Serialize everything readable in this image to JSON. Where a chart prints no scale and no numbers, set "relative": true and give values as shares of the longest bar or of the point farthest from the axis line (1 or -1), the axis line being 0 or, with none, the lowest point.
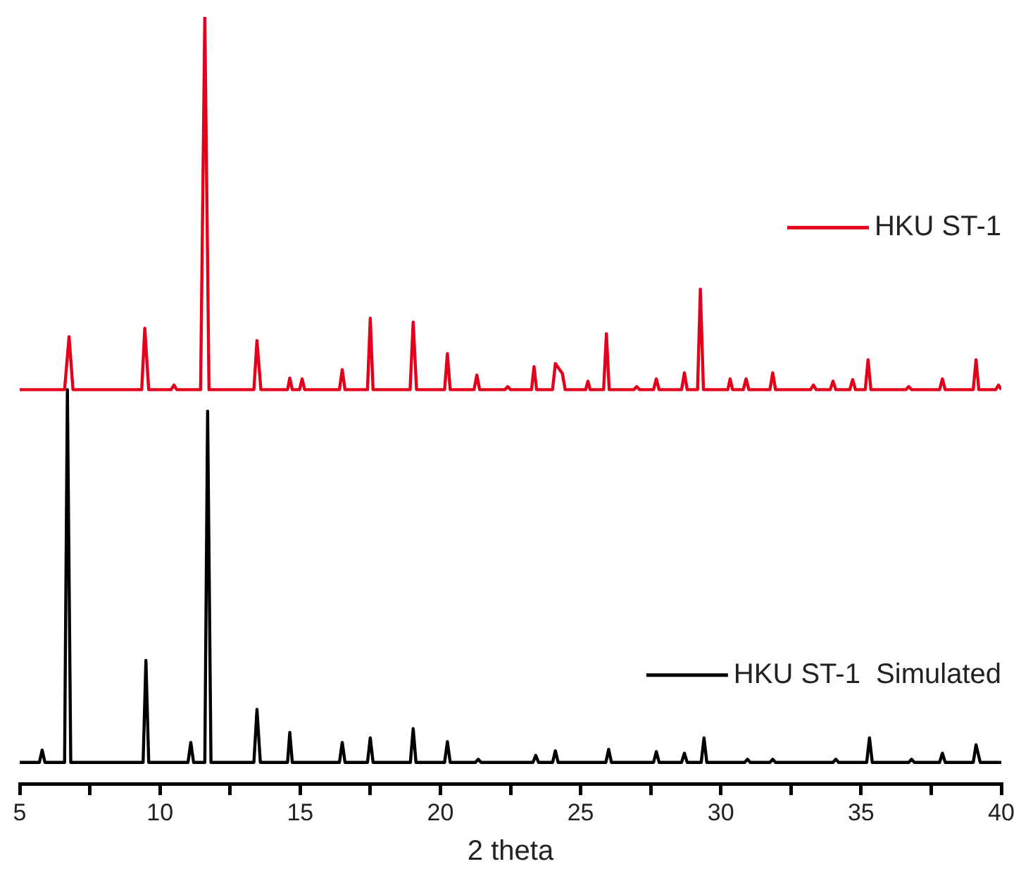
{
  "chart_data": {
    "type": "line",
    "relative": true,
    "xlabel": "2 theta",
    "xlim": [
      5,
      40
    ],
    "xticks": [
      5,
      {
        "value": 7.5,
        "label": null
      },
      10,
      {
        "value": 12.5,
        "label": null
      },
      15,
      {
        "value": 17.5,
        "label": null
      },
      20,
      {
        "value": 22.5,
        "label": null
      },
      25,
      {
        "value": 27.5,
        "label": null
      },
      30,
      {
        "value": 32.5,
        "label": null
      },
      35,
      {
        "value": 37.5,
        "label": null
      },
      40
    ],
    "legend": "right",
    "marker": "none",
    "line_style": "solid",
    "grid": false,
    "series": [
      {
        "name": "HKU ST-1",
        "color": "#e3001b",
        "x": [
          5.0,
          6.6,
          6.76,
          6.9,
          9.35,
          9.46,
          9.6,
          10.4,
          10.5,
          10.6,
          11.45,
          11.6,
          11.75,
          13.35,
          13.46,
          13.6,
          14.55,
          14.63,
          14.72,
          14.98,
          15.07,
          15.16,
          16.4,
          16.5,
          16.6,
          17.4,
          17.5,
          17.6,
          18.92,
          19.03,
          19.15,
          20.15,
          20.25,
          20.35,
          21.2,
          21.3,
          21.4,
          22.3,
          22.4,
          22.5,
          23.25,
          23.34,
          23.43,
          24.0,
          24.1,
          24.35,
          24.45,
          25.18,
          25.26,
          25.34,
          25.82,
          25.92,
          26.02,
          26.9,
          27.0,
          27.1,
          27.6,
          27.7,
          27.8,
          28.6,
          28.7,
          28.8,
          29.17,
          29.27,
          29.38,
          30.25,
          30.33,
          30.42,
          30.8,
          30.9,
          31.0,
          31.75,
          31.85,
          31.95,
          33.2,
          33.3,
          33.4,
          33.9,
          34.0,
          34.1,
          34.6,
          34.7,
          34.8,
          35.15,
          35.25,
          35.35,
          36.6,
          36.7,
          36.8,
          37.8,
          37.9,
          38.0,
          39.0,
          39.1,
          39.2,
          39.8,
          39.9,
          40.0
        ],
        "values": [
          0.514,
          0.514,
          0.583,
          0.514,
          0.514,
          0.594,
          0.514,
          0.514,
          0.52,
          0.514,
          0.514,
          1.0,
          0.514,
          0.514,
          0.578,
          0.514,
          0.514,
          0.529,
          0.514,
          0.514,
          0.528,
          0.514,
          0.514,
          0.54,
          0.514,
          0.514,
          0.607,
          0.514,
          0.514,
          0.602,
          0.514,
          0.514,
          0.561,
          0.514,
          0.514,
          0.533,
          0.514,
          0.514,
          0.518,
          0.514,
          0.514,
          0.544,
          0.514,
          0.514,
          0.548,
          0.535,
          0.514,
          0.514,
          0.525,
          0.514,
          0.514,
          0.587,
          0.514,
          0.514,
          0.518,
          0.514,
          0.514,
          0.528,
          0.514,
          0.514,
          0.536,
          0.514,
          0.514,
          0.645,
          0.514,
          0.514,
          0.528,
          0.514,
          0.514,
          0.528,
          0.514,
          0.514,
          0.536,
          0.514,
          0.514,
          0.52,
          0.514,
          0.514,
          0.525,
          0.514,
          0.514,
          0.527,
          0.514,
          0.514,
          0.553,
          0.514,
          0.514,
          0.518,
          0.514,
          0.514,
          0.528,
          0.514,
          0.514,
          0.553,
          0.514,
          0.514,
          0.52,
          0.514
        ]
      },
      {
        "name": "HKU ST-1  Simulated",
        "color": "#000000",
        "x": [
          5.0,
          5.7,
          5.8,
          5.9,
          6.6,
          6.7,
          6.82,
          9.4,
          9.5,
          9.6,
          11.0,
          11.1,
          11.2,
          11.6,
          11.7,
          11.82,
          13.35,
          13.46,
          13.58,
          14.55,
          14.63,
          14.72,
          16.4,
          16.5,
          16.6,
          17.4,
          17.5,
          17.6,
          18.93,
          19.03,
          19.13,
          20.15,
          20.25,
          20.35,
          21.25,
          21.35,
          21.45,
          23.3,
          23.4,
          23.5,
          24.0,
          24.1,
          24.2,
          25.9,
          26.0,
          26.1,
          27.6,
          27.7,
          27.8,
          28.6,
          28.7,
          28.8,
          29.3,
          29.4,
          29.5,
          30.85,
          30.95,
          31.05,
          31.75,
          31.85,
          31.95,
          34.0,
          34.1,
          34.2,
          35.2,
          35.3,
          35.4,
          36.7,
          36.8,
          36.9,
          37.8,
          37.9,
          38.0,
          39.0,
          39.1,
          39.25,
          40.0
        ],
        "values": [
          0.028,
          0.028,
          0.044,
          0.028,
          0.028,
          0.514,
          0.028,
          0.028,
          0.161,
          0.028,
          0.028,
          0.054,
          0.028,
          0.028,
          0.486,
          0.028,
          0.028,
          0.097,
          0.028,
          0.028,
          0.067,
          0.028,
          0.028,
          0.054,
          0.028,
          0.028,
          0.06,
          0.028,
          0.028,
          0.072,
          0.028,
          0.028,
          0.055,
          0.028,
          0.028,
          0.032,
          0.028,
          0.028,
          0.037,
          0.028,
          0.028,
          0.043,
          0.028,
          0.028,
          0.045,
          0.028,
          0.028,
          0.042,
          0.028,
          0.028,
          0.04,
          0.028,
          0.028,
          0.06,
          0.028,
          0.028,
          0.032,
          0.028,
          0.028,
          0.032,
          0.028,
          0.028,
          0.032,
          0.028,
          0.028,
          0.06,
          0.028,
          0.028,
          0.032,
          0.028,
          0.028,
          0.04,
          0.028,
          0.028,
          0.051,
          0.028,
          0.028
        ]
      }
    ]
  }
}
